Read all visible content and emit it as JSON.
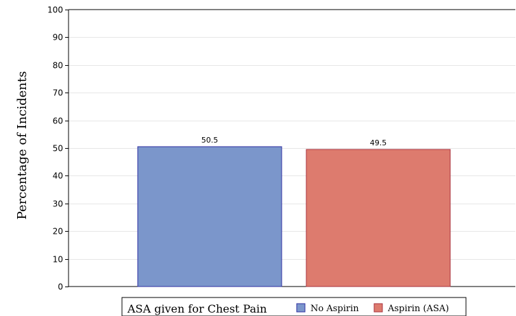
{
  "chart_data": {
    "type": "bar",
    "title": "",
    "xlabel": "",
    "ylabel": "Percentage of Incidents",
    "ylim": [
      0,
      100
    ],
    "yticks": [
      0,
      10,
      20,
      30,
      40,
      50,
      60,
      70,
      80,
      90,
      100
    ],
    "grid": true,
    "categories": [
      "No Aspirin",
      "Aspirin (ASA)"
    ],
    "values": [
      50.5,
      49.5
    ],
    "data_labels": [
      "50.5",
      "49.5"
    ],
    "colors": [
      "#7b96cb",
      "#dd7b6e"
    ],
    "border_colors": [
      "#2d2ea0",
      "#a8303e"
    ],
    "legend": {
      "title": "ASA given for Chest Pain",
      "placement": "bottom",
      "entries": [
        "No Aspirin",
        "Aspirin (ASA)"
      ]
    }
  }
}
